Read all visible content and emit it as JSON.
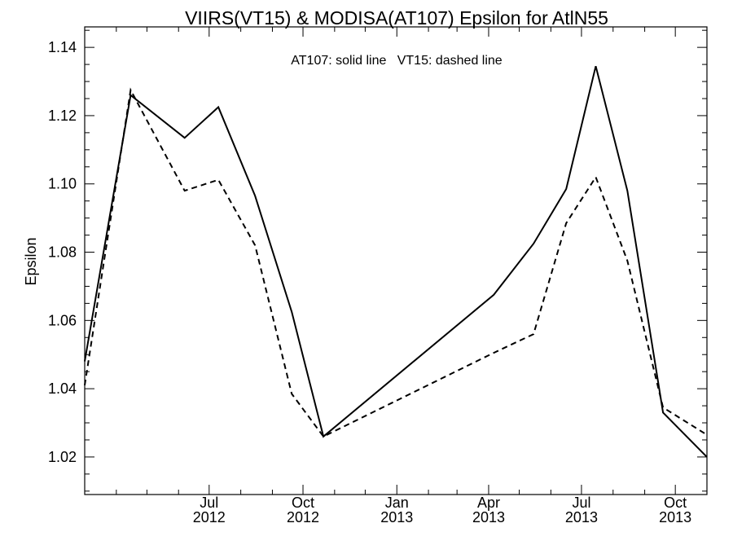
{
  "chart_data": {
    "type": "line",
    "title": "VIIRS(VT15) & MODISA(AT107)  Epsilon for AtlN55",
    "annotation": "AT107: solid line   VT15: dashed line",
    "ylabel": "Epsilon",
    "xlabel": "",
    "x_axis_type": "date",
    "xlim": [
      "2012-03-01",
      "2013-11-01"
    ],
    "ylim": [
      1.009,
      1.146
    ],
    "y_ticks": [
      1.02,
      1.04,
      1.06,
      1.08,
      1.1,
      1.12,
      1.14
    ],
    "y_tick_labels": [
      "1.02",
      "1.04",
      "1.06",
      "1.08",
      "1.10",
      "1.12",
      "1.14"
    ],
    "x_ticks": [
      {
        "date": "2012-07-01",
        "month": "Jul",
        "year": "2012"
      },
      {
        "date": "2012-10-01",
        "month": "Oct",
        "year": "2012"
      },
      {
        "date": "2013-01-01",
        "month": "Jan",
        "year": "2013"
      },
      {
        "date": "2013-04-01",
        "month": "Apr",
        "year": "2013"
      },
      {
        "date": "2013-07-01",
        "month": "Jul",
        "year": "2013"
      },
      {
        "date": "2013-10-01",
        "month": "Oct",
        "year": "2013"
      }
    ],
    "grid": false,
    "series": [
      {
        "name": "AT107",
        "style": "solid",
        "color": "#000000",
        "points": [
          {
            "x": "2012-03-01",
            "y": 1.048
          },
          {
            "x": "2012-04-15",
            "y": 1.126
          },
          {
            "x": "2012-06-07",
            "y": 1.1135
          },
          {
            "x": "2012-07-10",
            "y": 1.1225
          },
          {
            "x": "2012-08-15",
            "y": 1.0965
          },
          {
            "x": "2012-09-20",
            "y": 1.0625
          },
          {
            "x": "2012-10-21",
            "y": 1.026
          },
          {
            "x": "2013-04-06",
            "y": 1.0675
          },
          {
            "x": "2013-05-15",
            "y": 1.0825
          },
          {
            "x": "2013-06-16",
            "y": 1.0985
          },
          {
            "x": "2013-07-15",
            "y": 1.1345
          },
          {
            "x": "2013-08-15",
            "y": 1.098
          },
          {
            "x": "2013-09-19",
            "y": 1.033
          },
          {
            "x": "2013-11-01",
            "y": 1.02
          }
        ]
      },
      {
        "name": "VT15",
        "style": "dashed",
        "color": "#000000",
        "points": [
          {
            "x": "2012-03-01",
            "y": 1.041
          },
          {
            "x": "2012-04-15",
            "y": 1.1275
          },
          {
            "x": "2012-06-07",
            "y": 1.098
          },
          {
            "x": "2012-07-10",
            "y": 1.1012
          },
          {
            "x": "2012-08-15",
            "y": 1.082
          },
          {
            "x": "2012-09-20",
            "y": 1.0385
          },
          {
            "x": "2012-10-21",
            "y": 1.026
          },
          {
            "x": "2013-04-06",
            "y": 1.0505
          },
          {
            "x": "2013-05-15",
            "y": 1.056
          },
          {
            "x": "2013-06-16",
            "y": 1.0885
          },
          {
            "x": "2013-07-15",
            "y": 1.102
          },
          {
            "x": "2013-08-15",
            "y": 1.0775
          },
          {
            "x": "2013-09-19",
            "y": 1.0345
          },
          {
            "x": "2013-11-01",
            "y": 1.0265
          }
        ]
      }
    ]
  }
}
